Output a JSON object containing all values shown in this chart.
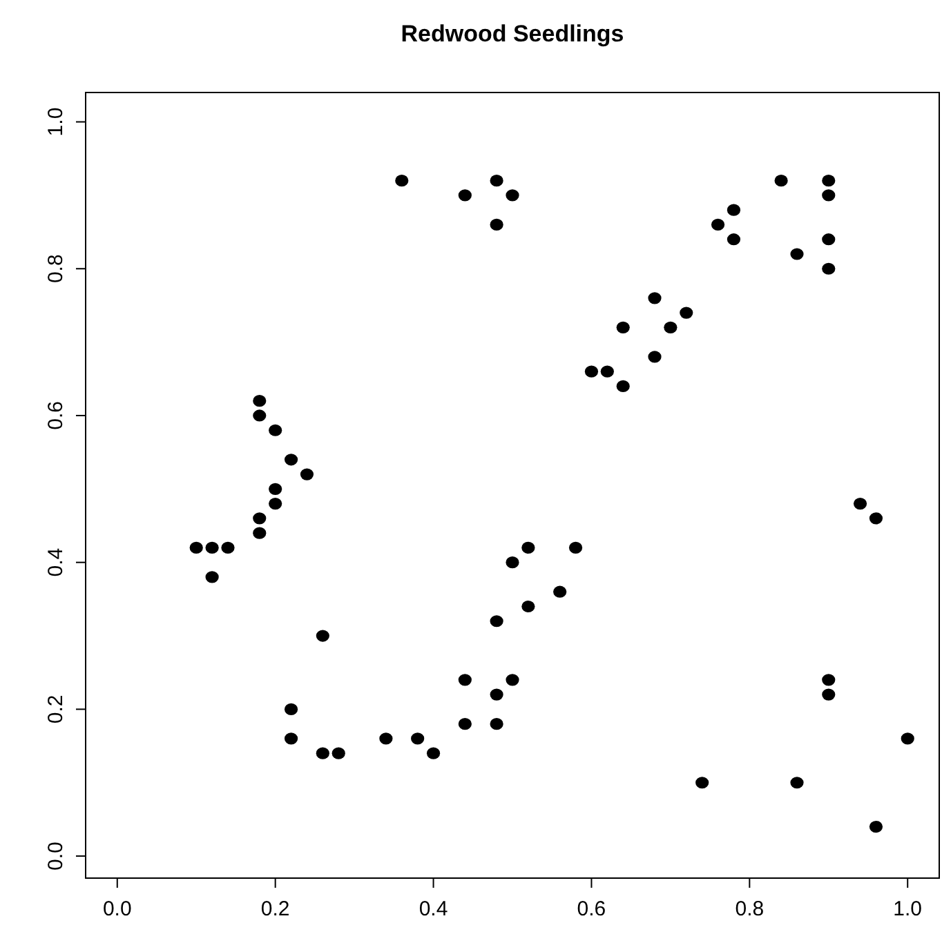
{
  "chart_data": {
    "type": "scatter",
    "title": "Redwood Seedlings",
    "xlim": [
      -0.04,
      1.04
    ],
    "ylim": [
      -0.03,
      1.04
    ],
    "xticks": [
      {
        "value": 0,
        "label": "0.0"
      },
      {
        "value": 0.2,
        "label": "0.2"
      },
      {
        "value": 0.4,
        "label": "0.4"
      },
      {
        "value": 0.6,
        "label": "0.6"
      },
      {
        "value": 0.8,
        "label": "0.8"
      },
      {
        "value": 1,
        "label": "1.0"
      }
    ],
    "yticks": [
      {
        "value": 0,
        "label": "0.0"
      },
      {
        "value": 0.2,
        "label": "0.2"
      },
      {
        "value": 0.4,
        "label": "0.4"
      },
      {
        "value": 0.6,
        "label": "0.6"
      },
      {
        "value": 0.8,
        "label": "0.8"
      },
      {
        "value": 1,
        "label": "1.0"
      }
    ],
    "grid": false,
    "marker": "circle",
    "series": [
      {
        "color": "#000000",
        "x": [
          0.36,
          0.44,
          0.48,
          0.5,
          0.48,
          0.84,
          0.9,
          0.9,
          0.76,
          0.78,
          0.78,
          0.86,
          0.9,
          0.9,
          0.68,
          0.72,
          0.64,
          0.7,
          0.6,
          0.62,
          0.68,
          0.64,
          0.18,
          0.18,
          0.2,
          0.22,
          0.24,
          0.2,
          0.2,
          0.18,
          0.18,
          0.1,
          0.12,
          0.14,
          0.12,
          0.94,
          0.96,
          0.52,
          0.58,
          0.5,
          0.56,
          0.52,
          0.48,
          0.26,
          0.44,
          0.5,
          0.48,
          0.22,
          0.44,
          0.48,
          0.34,
          0.38,
          0.22,
          0.26,
          0.28,
          0.4,
          0.9,
          0.9,
          1.0,
          0.74,
          0.86,
          0.96
        ],
        "values": [
          0.92,
          0.9,
          0.92,
          0.9,
          0.86,
          0.92,
          0.92,
          0.9,
          0.86,
          0.88,
          0.84,
          0.82,
          0.84,
          0.8,
          0.76,
          0.74,
          0.72,
          0.72,
          0.66,
          0.66,
          0.68,
          0.64,
          0.62,
          0.6,
          0.58,
          0.54,
          0.52,
          0.5,
          0.48,
          0.46,
          0.44,
          0.42,
          0.42,
          0.42,
          0.38,
          0.48,
          0.46,
          0.42,
          0.42,
          0.4,
          0.36,
          0.34,
          0.32,
          0.3,
          0.24,
          0.24,
          0.22,
          0.2,
          0.18,
          0.18,
          0.16,
          0.16,
          0.16,
          0.14,
          0.14,
          0.14,
          0.24,
          0.22,
          0.16,
          0.1,
          0.1,
          0.04
        ]
      }
    ]
  }
}
